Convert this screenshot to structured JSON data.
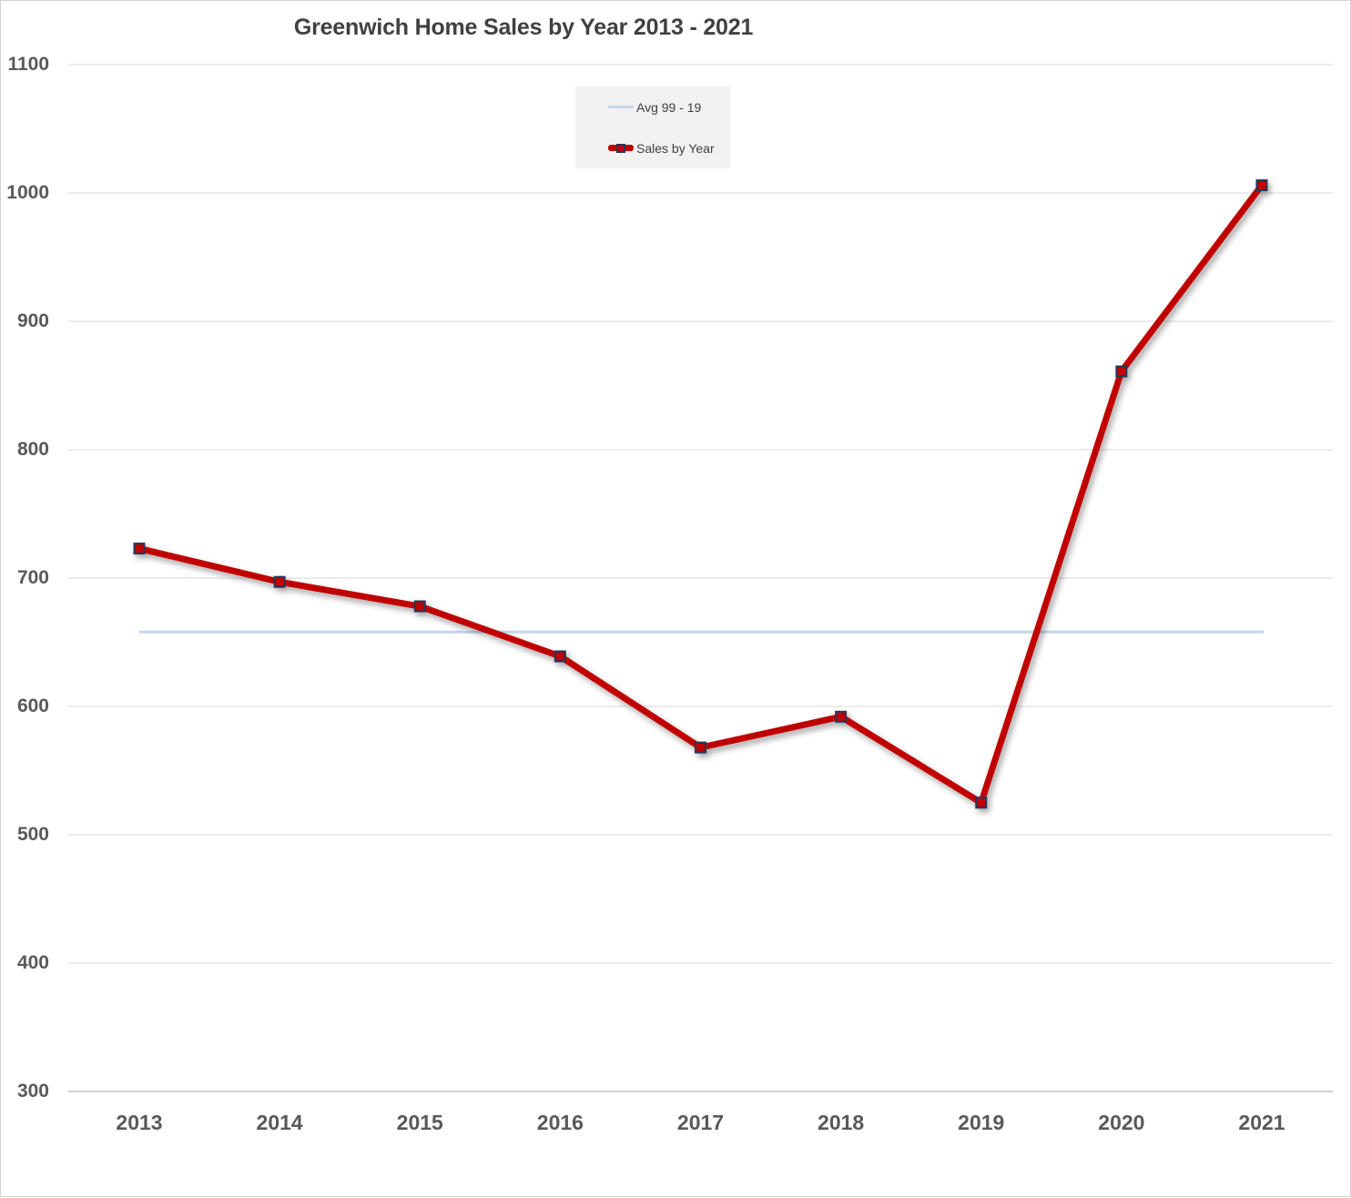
{
  "title": "Greenwich Home Sales by Year 2013 - 2021",
  "legend": {
    "items": [
      {
        "label": "Avg 99 - 19",
        "series": "avg"
      },
      {
        "label": "Sales by Year",
        "series": "sales"
      }
    ]
  },
  "colors": {
    "sales_line": "#c00000",
    "marker_fill": "#c00000",
    "marker_border": "#24395b",
    "avg_line": "#c3d5eb",
    "gridline": "#d9d9d9",
    "axis_line": "#bfbfbf",
    "tick_label": "#595959",
    "title_text": "#404040",
    "legend_text": "#404040",
    "legend_bg": "#f1f1f1",
    "chart_border": "#d2d2d2",
    "background": "#ffffff"
  },
  "chart_data": {
    "type": "line",
    "title": "Greenwich Home Sales by Year 2013 - 2021",
    "categories": [
      "2013",
      "2014",
      "2015",
      "2016",
      "2017",
      "2018",
      "2019",
      "2020",
      "2021"
    ],
    "series": [
      {
        "name": "Avg 99 - 19",
        "style": "thin-light-blue-horizontal",
        "values": [
          658,
          658,
          658,
          658,
          658,
          658,
          658,
          658,
          658
        ]
      },
      {
        "name": "Sales by Year",
        "style": "thick-dark-red-with-square-markers",
        "values": [
          723,
          697,
          678,
          639,
          568,
          592,
          525,
          861,
          1006
        ]
      }
    ],
    "xlabel": "",
    "ylabel": "",
    "ylim": [
      300,
      1100
    ],
    "yticks": [
      300,
      400,
      500,
      600,
      700,
      800,
      900,
      1000,
      1100
    ],
    "grid": true,
    "legend_position": "inside-top-center"
  }
}
